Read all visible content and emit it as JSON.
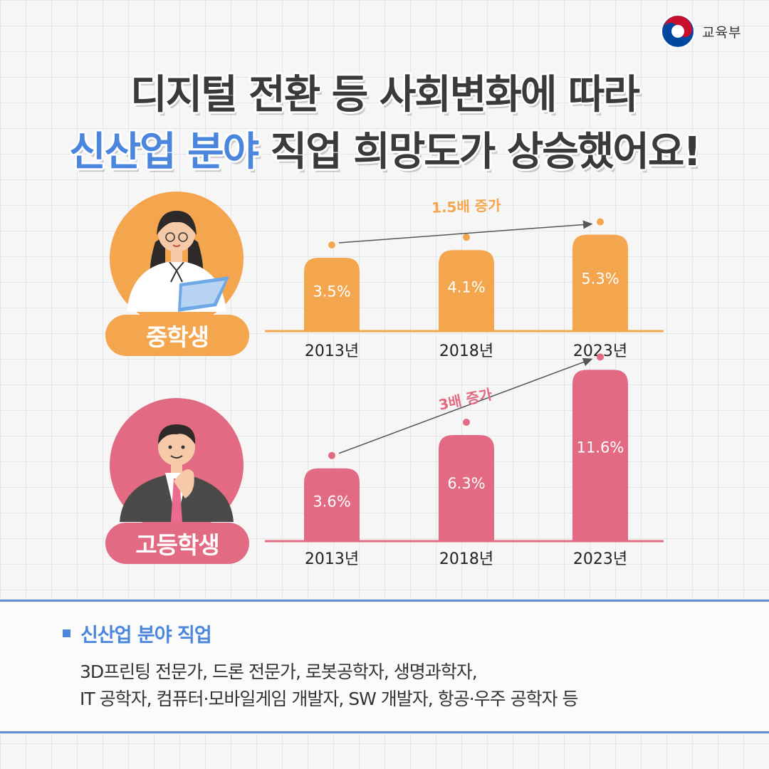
{
  "logo": {
    "text": "교육부",
    "colors": [
      "#c8102e",
      "#0047a0"
    ]
  },
  "headline": {
    "line1": "디지털 전환 등 사회변화에 따라",
    "line2_highlight": "신산업 분야",
    "line2_rest": " 직업 희망도가 상승했어요!"
  },
  "colors": {
    "middle": "#f4a64e",
    "high": "#e26a82",
    "accent": "#4a86dd"
  },
  "chart_data": [
    {
      "type": "bar",
      "series_label": "중학생",
      "categories": [
        "2013년",
        "2018년",
        "2023년"
      ],
      "values": [
        3.5,
        4.1,
        5.3
      ],
      "value_labels": [
        "3.5%",
        "4.1%",
        "5.3%"
      ],
      "annotation": "1.5배 증가",
      "color": "#f4a64e"
    },
    {
      "type": "bar",
      "series_label": "고등학생",
      "categories": [
        "2013년",
        "2018년",
        "2023년"
      ],
      "values": [
        3.6,
        6.3,
        11.6
      ],
      "value_labels": [
        "3.6%",
        "6.3%",
        "11.6%"
      ],
      "annotation": "3배 증가",
      "color": "#e26a82"
    }
  ],
  "panel": {
    "title": "신산업 분야 직업",
    "line1": "3D프린팅 전문가, 드론 전문가, 로봇공학자, 생명과학자,",
    "line2": "IT 공학자, 컴퓨터·모바일게임 개발자, SW 개발자, 항공·우주 공학자 등"
  }
}
